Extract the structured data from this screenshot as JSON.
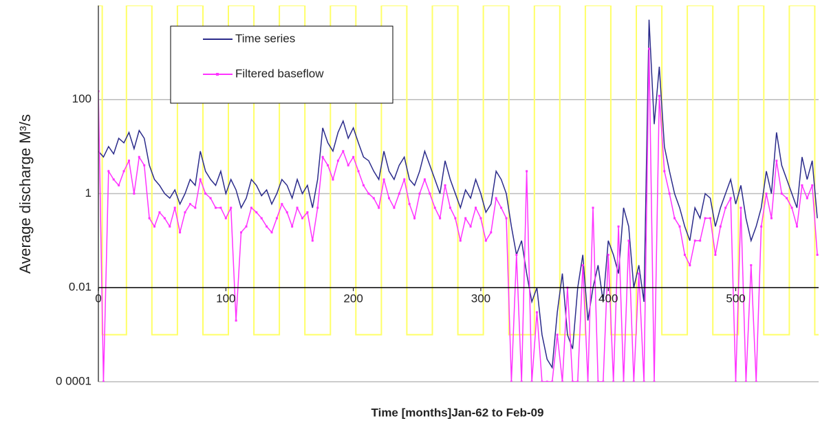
{
  "chart_data": {
    "type": "line",
    "xlabel": "Time [months]Jan-62  to Feb-09",
    "ylabel": "Average discharge M³/s",
    "log_y": true,
    "grid": true,
    "x_axis_crosses": 0.01,
    "xlim": [
      0,
      565
    ],
    "ylim": [
      0.0001,
      10000
    ],
    "xticks": [
      0,
      100,
      200,
      300,
      400,
      500
    ],
    "yticks": [
      {
        "value": 0.0001,
        "label": "0 0001"
      },
      0.01,
      1,
      100
    ],
    "legend": "upper-left",
    "x": [
      0,
      4,
      8,
      12,
      16,
      20,
      24,
      28,
      32,
      36,
      40,
      44,
      48,
      52,
      56,
      60,
      64,
      68,
      72,
      76,
      80,
      84,
      88,
      92,
      96,
      100,
      104,
      108,
      112,
      116,
      120,
      124,
      128,
      132,
      136,
      140,
      144,
      148,
      152,
      156,
      160,
      164,
      168,
      172,
      176,
      180,
      184,
      188,
      192,
      196,
      200,
      204,
      208,
      212,
      216,
      220,
      224,
      228,
      232,
      236,
      240,
      244,
      248,
      252,
      256,
      260,
      264,
      268,
      272,
      276,
      280,
      284,
      288,
      292,
      296,
      300,
      304,
      308,
      312,
      316,
      320,
      324,
      328,
      332,
      336,
      340,
      344,
      348,
      352,
      356,
      360,
      364,
      368,
      372,
      376,
      380,
      384,
      388,
      392,
      396,
      400,
      404,
      408,
      412,
      416,
      420,
      424,
      428,
      432,
      436,
      440,
      444,
      448,
      452,
      456,
      460,
      464,
      468,
      472,
      476,
      480,
      484,
      488,
      492,
      496,
      500,
      504,
      508,
      512,
      516,
      520,
      524,
      528,
      532,
      536,
      540,
      544,
      548,
      552,
      556,
      560,
      564
    ],
    "series": [
      {
        "name": "Time series",
        "color": "#2a2a8a",
        "marker": false,
        "values": [
          8,
          6,
          10,
          7,
          15,
          12,
          20,
          9,
          22,
          15,
          4,
          2,
          1.5,
          1,
          0.8,
          1.2,
          0.6,
          1,
          2,
          1.5,
          8,
          3,
          2,
          1.5,
          3,
          1,
          2,
          1.2,
          0.5,
          0.8,
          2,
          1.5,
          0.9,
          1.2,
          0.6,
          1,
          2,
          1.5,
          0.8,
          2,
          1,
          1.5,
          0.5,
          2,
          25,
          12,
          8,
          20,
          35,
          15,
          25,
          12,
          6,
          5,
          3,
          2,
          8,
          3,
          2,
          4,
          6,
          2,
          1.5,
          3,
          8,
          4,
          2,
          1,
          5,
          2,
          1,
          0.5,
          1.2,
          0.8,
          2,
          1,
          0.4,
          0.6,
          3,
          2,
          1,
          0.2,
          0.05,
          0.1,
          0.02,
          0.005,
          0.01,
          0.001,
          0.0003,
          0.0002,
          0.003,
          0.02,
          0.001,
          0.0005,
          0.01,
          0.05,
          0.002,
          0.01,
          0.03,
          0.005,
          0.1,
          0.05,
          0.02,
          0.5,
          0.2,
          0.01,
          0.03,
          0.005,
          5000,
          30,
          500,
          10,
          3,
          1,
          0.5,
          0.2,
          0.1,
          0.5,
          0.3,
          1,
          0.8,
          0.2,
          0.5,
          1,
          2,
          0.6,
          1.5,
          0.3,
          0.1,
          0.2,
          0.5,
          3,
          1,
          20,
          4,
          2,
          1,
          0.5,
          6,
          2,
          5,
          0.3
        ]
      },
      {
        "name": "Filtered baseflow",
        "color": "#ff33ff",
        "marker": true,
        "values": [
          150,
          0.0001,
          3,
          2,
          1.5,
          3,
          5,
          1,
          6,
          4,
          0.3,
          0.2,
          0.4,
          0.3,
          0.2,
          0.5,
          0.15,
          0.4,
          0.6,
          0.5,
          2,
          1,
          0.8,
          0.5,
          0.5,
          0.3,
          0.5,
          0.002,
          0.15,
          0.2,
          0.5,
          0.4,
          0.3,
          0.2,
          0.15,
          0.3,
          0.6,
          0.4,
          0.2,
          0.5,
          0.3,
          0.4,
          0.1,
          0.5,
          6,
          4,
          2,
          5,
          8,
          4,
          6,
          3,
          1.5,
          1,
          0.8,
          0.5,
          2,
          0.8,
          0.5,
          1,
          2,
          0.6,
          0.3,
          1,
          2,
          1,
          0.5,
          0.3,
          1.5,
          0.5,
          0.3,
          0.1,
          0.3,
          0.2,
          0.5,
          0.3,
          0.1,
          0.15,
          0.8,
          0.5,
          0.3,
          0.0001,
          0.05,
          0.0001,
          3,
          0.0001,
          0.003,
          0.0001,
          0.0001,
          0.0001,
          0.001,
          0.0001,
          0.01,
          0.0001,
          0.0001,
          0.03,
          0.0001,
          0.5,
          0.0001,
          0.0001,
          0.05,
          0.0001,
          0.2,
          0.0001,
          0.1,
          0.0001,
          0.02,
          0.0001,
          1200,
          0.0001,
          120,
          3,
          1,
          0.3,
          0.2,
          0.05,
          0.03,
          0.1,
          0.1,
          0.3,
          0.3,
          0.05,
          0.2,
          0.5,
          0.8,
          0.0001,
          0.5,
          0.0001,
          0.03,
          0.0001,
          0.2,
          1,
          0.3,
          5,
          1,
          0.8,
          0.5,
          0.2,
          1.5,
          0.8,
          1.5,
          0.05
        ]
      },
      {
        "color": "#ffff66",
        "marker": false,
        "x": [
          0,
          3,
          3,
          22,
          22,
          42,
          42,
          62,
          62,
          82,
          82,
          102,
          102,
          122,
          122,
          142,
          142,
          162,
          162,
          182,
          182,
          202,
          202,
          222,
          222,
          242,
          242,
          262,
          262,
          282,
          282,
          302,
          302,
          322,
          322,
          342,
          342,
          362,
          362,
          382,
          382,
          402,
          402,
          422,
          422,
          442,
          442,
          462,
          462,
          482,
          482,
          502,
          502,
          522,
          522,
          542,
          542,
          562,
          562,
          565
        ],
        "values": [
          10000,
          10000,
          0.001,
          0.001,
          10000,
          10000,
          0.001,
          0.001,
          10000,
          10000,
          0.001,
          0.001,
          10000,
          10000,
          0.001,
          0.001,
          10000,
          10000,
          0.001,
          0.001,
          10000,
          10000,
          0.001,
          0.001,
          10000,
          10000,
          0.001,
          0.001,
          10000,
          10000,
          0.001,
          0.001,
          10000,
          10000,
          0.001,
          0.001,
          10000,
          10000,
          0.001,
          0.001,
          10000,
          10000,
          0.001,
          0.001,
          10000,
          10000,
          0.001,
          0.001,
          10000,
          10000,
          0.001,
          0.001,
          10000,
          10000,
          0.001,
          0.001,
          10000,
          10000,
          0.001,
          0.001
        ]
      }
    ]
  }
}
